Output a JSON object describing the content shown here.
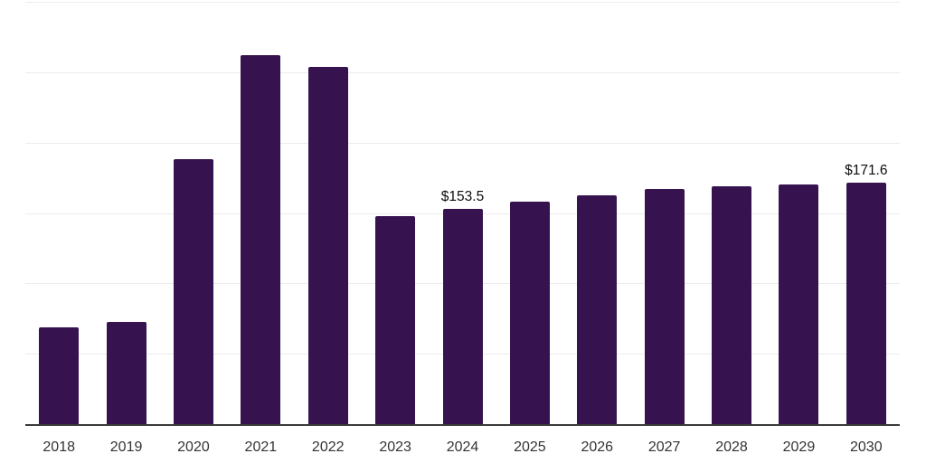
{
  "chart_data": {
    "type": "bar",
    "title": "",
    "xlabel": "",
    "ylabel": "",
    "categories": [
      "2018",
      "2019",
      "2020",
      "2021",
      "2022",
      "2023",
      "2024",
      "2025",
      "2026",
      "2027",
      "2028",
      "2029",
      "2030"
    ],
    "values": [
      69.0,
      72.8,
      188.4,
      262.2,
      253.9,
      148.0,
      153.5,
      158.3,
      162.7,
      167.2,
      169.2,
      170.3,
      171.6
    ],
    "data_labels": [
      {
        "category": "2024",
        "text": "$153.5"
      },
      {
        "category": "2030",
        "text": "$171.6"
      }
    ],
    "ylim": [
      0,
      300
    ],
    "gridline_step": 50,
    "grid": true,
    "legend": "none",
    "colors": {
      "bar": "#36134f",
      "axis": "#3a3a3a",
      "gridline": "#ececec",
      "tick_label": "#333333",
      "data_label": "#0d0d0d",
      "background": "#ffffff"
    }
  }
}
